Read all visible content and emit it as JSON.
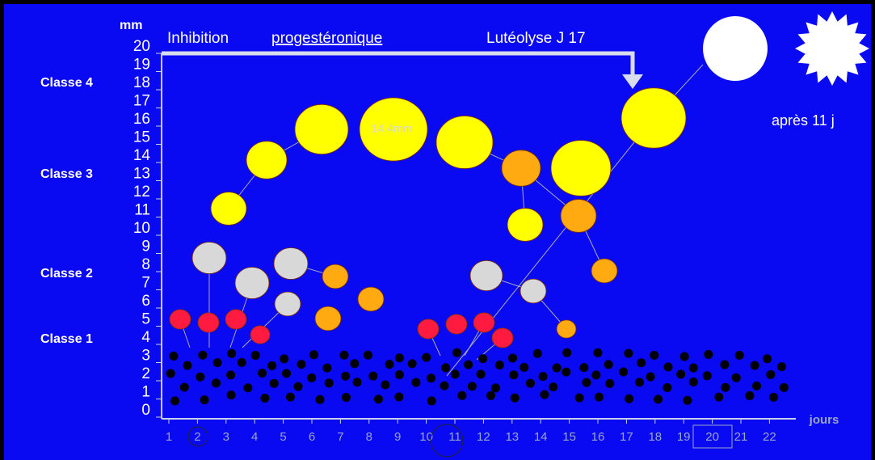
{
  "y_axis": {
    "unit": "mm",
    "labels": [
      "0",
      "1",
      "2",
      "3",
      "4",
      "5",
      "6",
      "7",
      "8",
      "9",
      "10",
      "11",
      "12",
      "13",
      "14",
      "15",
      "16",
      "17",
      "18",
      "19",
      "20"
    ]
  },
  "classes": [
    "Classe 1",
    "Classe 2",
    "Classe 3",
    "Classe 4"
  ],
  "x_axis": {
    "labels": [
      "1",
      "2",
      "3",
      "4",
      "5",
      "6",
      "7",
      "8",
      "9",
      "10",
      "11",
      "12",
      "13",
      "14",
      "15",
      "16",
      "17",
      "18",
      "19",
      "20",
      "21",
      "22"
    ],
    "unit": "jours"
  },
  "annotations": {
    "inhibition": "Inhibition",
    "progesteronique": "progestéronique",
    "luteolyse": "Lutéolyse J 17",
    "size": "14.4mm",
    "apres": "après 11 j"
  }
}
